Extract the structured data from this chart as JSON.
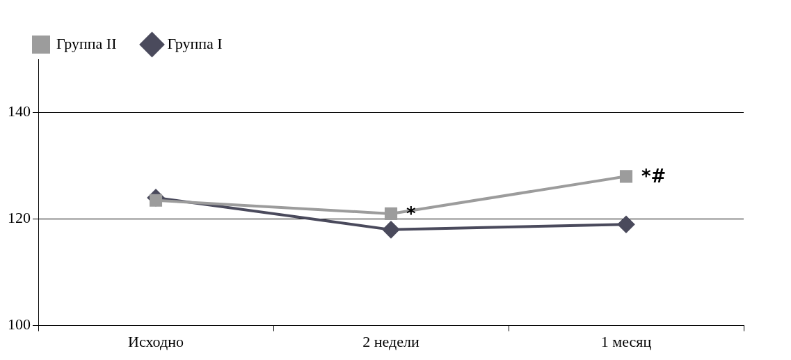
{
  "chart_data": {
    "type": "line",
    "categories": [
      "Исходно",
      "2 недели",
      "1 месяц"
    ],
    "series": [
      {
        "name": "Группа I",
        "color": "#4a4a5c",
        "values": [
          124,
          118,
          119
        ],
        "marker": "diamond"
      },
      {
        "name": "Группа II",
        "color": "#9c9c9c",
        "values": [
          123.5,
          121,
          128
        ],
        "marker": "square"
      }
    ],
    "ylim": [
      100,
      150
    ],
    "yticks": [
      100,
      120,
      140
    ],
    "grid": "y",
    "legend": "top left",
    "annotations": [
      {
        "text": "*",
        "x": "2 недели",
        "y": 121
      },
      {
        "text": "*#",
        "x": "1 месяц",
        "y": 128
      }
    ]
  }
}
